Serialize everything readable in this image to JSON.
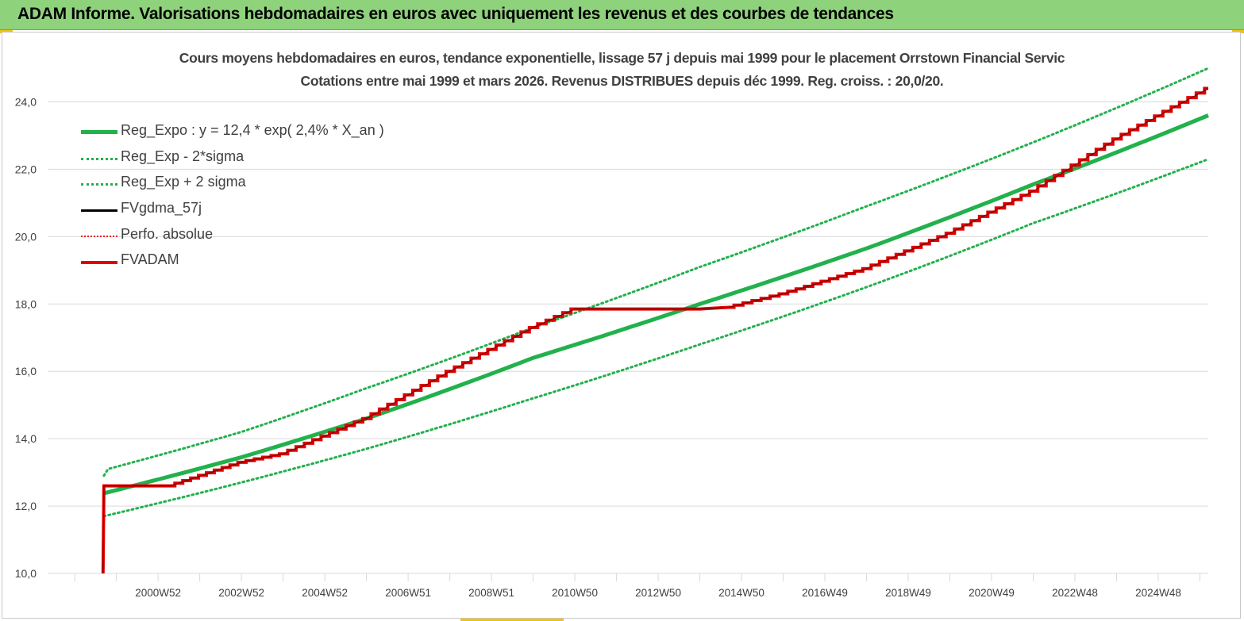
{
  "header": {
    "title": "ADAM Informe. Valorisations hebdomadaires en euros avec uniquement les revenus et des courbes de tendances"
  },
  "chart_data": {
    "type": "line",
    "title_line1": "Cours moyens hebdomadaires en euros, tendance exponentielle, lissage 57 j depuis mai 1999 pour le placement Orrstown Financial Servic",
    "title_line2": "Cotations entre mai 1999 et mars 2026.  Revenus DISTRIBUES depuis déc 1999. Reg. croiss. : 20,0/20.",
    "ylim": [
      10,
      25
    ],
    "x_range": [
      1998.35,
      2026.2
    ],
    "y_ticks": [
      "10,0",
      "12,0",
      "14,0",
      "16,0",
      "18,0",
      "20,0",
      "22,0",
      "24,0"
    ],
    "y_tick_values": [
      10,
      12,
      14,
      16,
      18,
      20,
      22,
      24
    ],
    "x_tick_labels": [
      "2000W52",
      "2002W52",
      "2004W52",
      "2006W51",
      "2008W51",
      "2010W50",
      "2012W50",
      "2014W50",
      "2016W49",
      "2018W49",
      "2020W49",
      "2022W48",
      "2024W48"
    ],
    "x_tick_values": [
      2001.0,
      2003.0,
      2005.0,
      2007.0,
      2009.0,
      2011.0,
      2013.0,
      2015.0,
      2017.0,
      2019.0,
      2021.0,
      2023.0,
      2025.0
    ],
    "grid": "horizontal",
    "legend_position": "top-left",
    "series": [
      {
        "name": "Reg_Expo : y = 12,4 * exp( 2,4% *  X_an )",
        "color": "#22b14c",
        "style": "solid-thick",
        "x": [
          1999.7,
          2003.0,
          2006.0,
          2010.0,
          2014.0,
          2018.0,
          2022.0,
          2026.2
        ],
        "y": [
          12.38,
          13.45,
          14.6,
          16.4,
          18.0,
          19.65,
          21.55,
          23.6
        ]
      },
      {
        "name": "Reg_Exp - 2*sigma",
        "color": "#22b14c",
        "style": "dotted",
        "x": [
          1999.7,
          2003.0,
          2006.0,
          2010.0,
          2014.0,
          2018.0,
          2022.0,
          2026.2
        ],
        "y": [
          11.7,
          12.7,
          13.7,
          15.2,
          16.8,
          18.5,
          20.4,
          22.3
        ]
      },
      {
        "name": "Reg_Exp + 2 sigma",
        "color": "#22b14c",
        "style": "dotted",
        "x": [
          1999.7,
          1999.8,
          2003.0,
          2006.0,
          2010.0,
          2014.0,
          2018.0,
          2022.0,
          2026.2
        ],
        "y": [
          12.9,
          13.1,
          14.2,
          15.5,
          17.3,
          19.1,
          20.9,
          22.8,
          25.0
        ]
      },
      {
        "name": "FVgdma_57j",
        "color": "#000000",
        "style": "solid",
        "x": [
          1999.68,
          1999.7,
          2001.3,
          2003.0,
          2004.0,
          2006.0,
          2008.0,
          2010.0,
          2011.0,
          2012.0,
          2014.0,
          2014.7,
          2016.0,
          2018.0,
          2020.0,
          2022.0,
          2024.0,
          2026.2
        ],
        "y": [
          10.0,
          12.6,
          12.6,
          13.3,
          13.55,
          14.6,
          16.0,
          17.3,
          17.85,
          17.85,
          17.85,
          17.9,
          18.3,
          19.05,
          20.1,
          21.35,
          22.9,
          24.4
        ]
      },
      {
        "name": "Perfo. absolue",
        "color": "#ff0000",
        "style": "dotted",
        "x": [],
        "y": []
      },
      {
        "name": "FVADAM",
        "color": "#e00000",
        "style": "solid-thick",
        "x": [
          1999.68,
          1999.7,
          2001.3,
          2003.0,
          2004.0,
          2006.0,
          2008.0,
          2010.0,
          2011.0,
          2012.0,
          2014.0,
          2014.7,
          2016.0,
          2018.0,
          2020.0,
          2022.0,
          2024.0,
          2026.2
        ],
        "y": [
          10.0,
          12.6,
          12.6,
          13.3,
          13.55,
          14.6,
          16.0,
          17.3,
          17.85,
          17.85,
          17.85,
          17.9,
          18.3,
          19.05,
          20.1,
          21.35,
          22.9,
          24.4
        ]
      }
    ]
  }
}
